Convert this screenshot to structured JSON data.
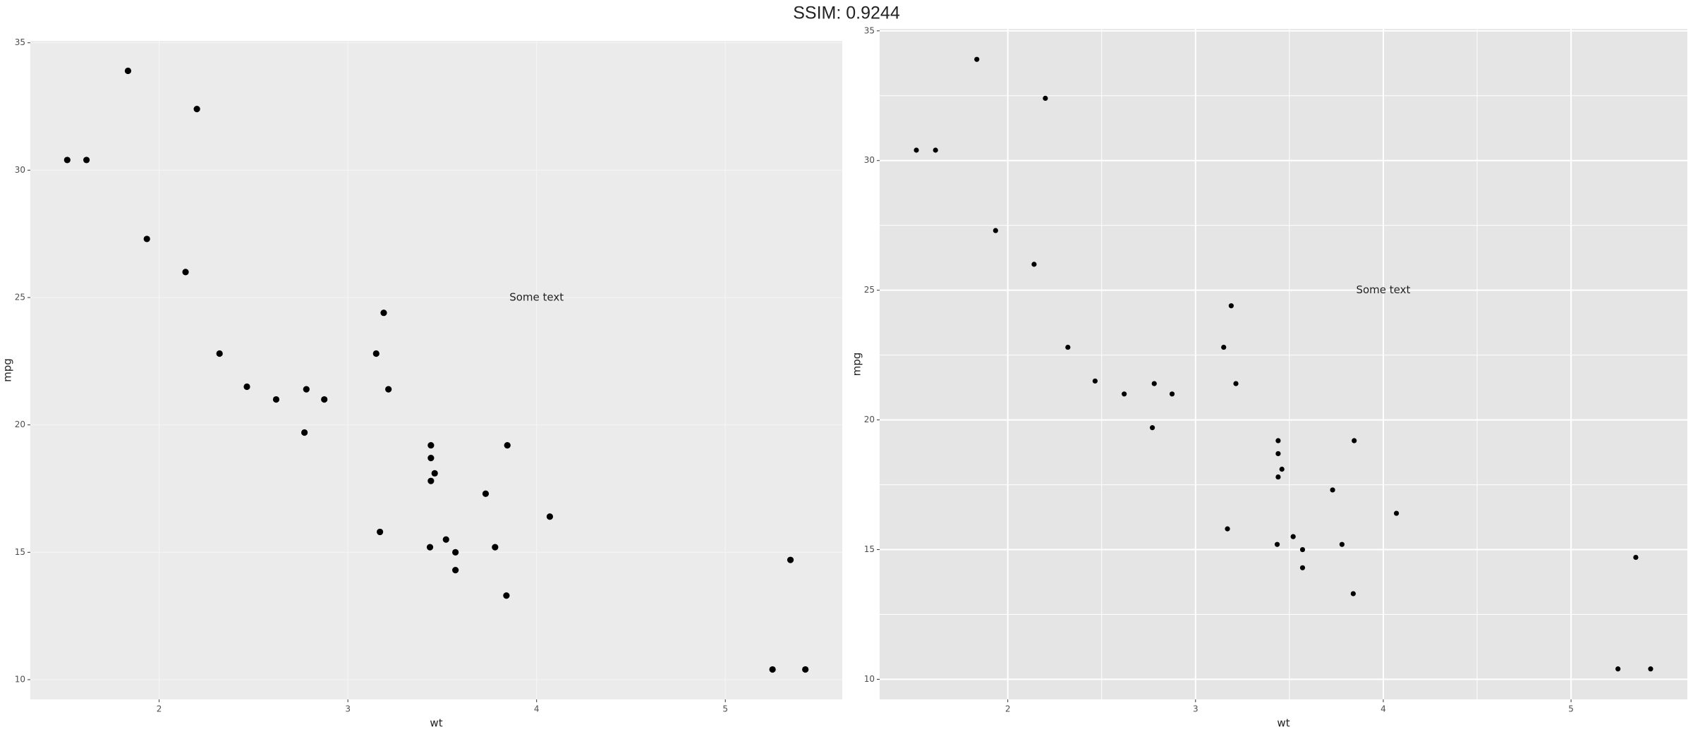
{
  "title": "SSIM: 0.9244",
  "chart_data": [
    {
      "type": "scatter",
      "x_label": "wt",
      "y_label": "mpg",
      "x": [
        2.62,
        2.875,
        2.32,
        3.215,
        3.44,
        3.46,
        3.57,
        3.19,
        3.15,
        3.44,
        3.44,
        4.07,
        3.73,
        3.78,
        5.25,
        5.424,
        5.345,
        2.2,
        1.615,
        1.835,
        2.465,
        3.52,
        3.435,
        3.84,
        3.845,
        1.935,
        2.14,
        1.513,
        3.17,
        2.77,
        3.57,
        2.78
      ],
      "values": [
        21,
        21,
        22.8,
        21.4,
        18.7,
        18.1,
        14.3,
        24.4,
        22.8,
        19.2,
        17.8,
        16.4,
        17.3,
        15.2,
        10.4,
        10.4,
        14.7,
        32.4,
        30.4,
        33.9,
        21.5,
        15.5,
        15.2,
        13.3,
        19.2,
        27.3,
        26,
        30.4,
        15.8,
        19.7,
        15,
        21.4
      ],
      "color": "#000000",
      "background": "#ebebeb",
      "grid": true,
      "grid_color": "#f4f4f4",
      "minor_grid": false,
      "xlim": [
        1.3175,
        5.6196
      ],
      "xticks": [
        2,
        3,
        4,
        5
      ],
      "ylim": [
        9.225,
        35.075
      ],
      "yticks": [
        10,
        15,
        20,
        25,
        30,
        35
      ],
      "annotations": [
        {
          "text": "Some text",
          "x": 4,
          "y": 25
        }
      ]
    },
    {
      "type": "scatter",
      "x_label": "wt",
      "y_label": "mpg",
      "x": [
        2.62,
        2.875,
        2.32,
        3.215,
        3.44,
        3.46,
        3.57,
        3.19,
        3.15,
        3.44,
        3.44,
        4.07,
        3.73,
        3.78,
        5.25,
        5.424,
        5.345,
        2.2,
        1.615,
        1.835,
        2.465,
        3.52,
        3.435,
        3.84,
        3.845,
        1.935,
        2.14,
        1.513,
        3.17,
        2.77,
        3.57,
        2.78
      ],
      "values": [
        21,
        21,
        22.8,
        21.4,
        18.7,
        18.1,
        14.3,
        24.4,
        22.8,
        19.2,
        17.8,
        16.4,
        17.3,
        15.2,
        10.4,
        10.4,
        14.7,
        32.4,
        30.4,
        33.9,
        21.5,
        15.5,
        15.2,
        13.3,
        19.2,
        27.3,
        26,
        30.4,
        15.8,
        19.7,
        15,
        21.4
      ],
      "color": "#000000",
      "background": "#e5e5e5",
      "grid": true,
      "grid_color": "#ffffff",
      "minor_grid": true,
      "xlim": [
        1.3175,
        5.6196
      ],
      "xticks": [
        2,
        3,
        4,
        5
      ],
      "ylim": [
        9.225,
        35.075
      ],
      "yticks": [
        10,
        15,
        20,
        25,
        30,
        35
      ],
      "annotations": [
        {
          "text": "Some text",
          "x": 4,
          "y": 25
        }
      ]
    }
  ]
}
